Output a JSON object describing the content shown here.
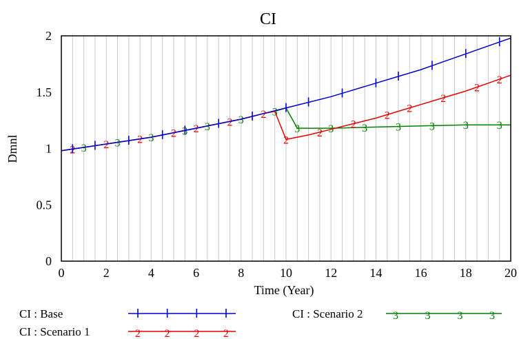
{
  "chart_data": {
    "type": "line",
    "title": "CI",
    "xlabel": "Time (Year)",
    "ylabel": "Dmnl",
    "xlim": [
      0,
      20
    ],
    "ylim": [
      0,
      2
    ],
    "x_ticks": [
      "0",
      "2",
      "4",
      "6",
      "8",
      "10",
      "12",
      "14",
      "16",
      "18",
      "20"
    ],
    "y_ticks": [
      "0",
      "0.5",
      "1",
      "1.5",
      "2"
    ],
    "grid": "vertical lines every 0.5 year",
    "legend_position": "bottom",
    "series": [
      {
        "name": "CI : Base",
        "marker": "1",
        "color": "#0000cc",
        "x": [
          0,
          1,
          2,
          3,
          4,
          5,
          6,
          7,
          8,
          9,
          10,
          11,
          12,
          13,
          14,
          15,
          16,
          17,
          18,
          19,
          20
        ],
        "y": [
          0.98,
          1.01,
          1.04,
          1.07,
          1.1,
          1.14,
          1.18,
          1.22,
          1.26,
          1.31,
          1.36,
          1.41,
          1.46,
          1.52,
          1.58,
          1.64,
          1.7,
          1.77,
          1.84,
          1.91,
          1.98
        ],
        "marker_x": [
          0.5,
          1.5,
          3,
          4.5,
          5.5,
          7,
          8.5,
          10,
          11,
          12.5,
          14,
          15,
          16.5,
          18,
          19.5
        ]
      },
      {
        "name": "CI : Scenario 1",
        "marker": "2",
        "color": "#e60000",
        "x": [
          0,
          1,
          2,
          3,
          4,
          5,
          6,
          7,
          8,
          9,
          9.5,
          10,
          11,
          12,
          13,
          14,
          15,
          16,
          17,
          18,
          19,
          20
        ],
        "y": [
          0.98,
          1.01,
          1.04,
          1.07,
          1.1,
          1.14,
          1.18,
          1.22,
          1.26,
          1.31,
          1.33,
          1.08,
          1.12,
          1.17,
          1.22,
          1.27,
          1.33,
          1.39,
          1.45,
          1.51,
          1.58,
          1.65
        ],
        "marker_x": [
          0.5,
          2,
          3.5,
          5,
          6,
          7.5,
          9,
          10,
          11.5,
          13,
          14.5,
          15.5,
          17,
          18.5,
          19.5
        ]
      },
      {
        "name": "CI : Scenario 2",
        "marker": "3",
        "color": "#008000",
        "x": [
          0,
          1,
          2,
          3,
          4,
          5,
          6,
          7,
          8,
          9,
          9.5,
          10,
          10.5,
          12,
          14,
          16,
          18,
          20
        ],
        "y": [
          0.98,
          1.01,
          1.04,
          1.07,
          1.1,
          1.14,
          1.18,
          1.22,
          1.26,
          1.31,
          1.33,
          1.36,
          1.18,
          1.18,
          1.19,
          1.2,
          1.21,
          1.21
        ],
        "marker_x": [
          1,
          2.5,
          4,
          5.5,
          6.5,
          8,
          9.5,
          10.5,
          12,
          13.5,
          15,
          16.5,
          18,
          19.5
        ]
      }
    ]
  }
}
